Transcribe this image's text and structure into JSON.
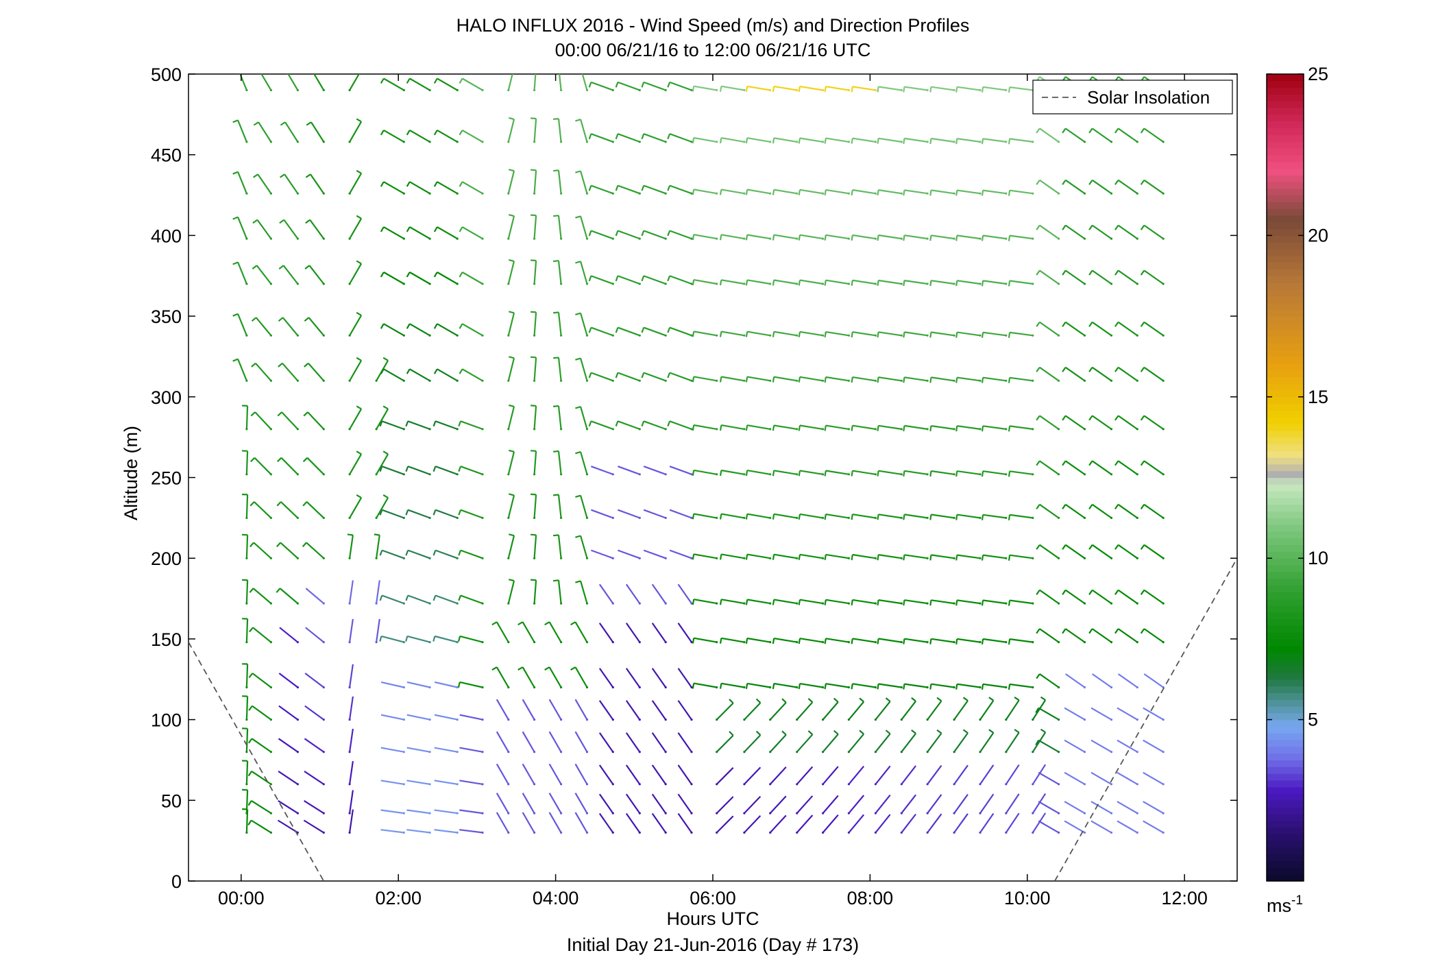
{
  "chart_data": {
    "type": "wind-barb-profile",
    "title": "HALO INFLUX 2016 - Wind Speed (m/s) and Direction Profiles",
    "subtitle": "00:00 06/21/16 to 12:00 06/21/16  UTC",
    "xlabel": "Hours UTC",
    "xlabel2": "Initial Day 21-Jun-2016 (Day # 173)",
    "ylabel": "Altitude (m)",
    "xlim_hours": [
      -0.67,
      12.67
    ],
    "ylim": [
      0,
      500
    ],
    "x_ticks": [
      {
        "v": 0,
        "label": "00:00"
      },
      {
        "v": 2,
        "label": "02:00"
      },
      {
        "v": 4,
        "label": "04:00"
      },
      {
        "v": 6,
        "label": "06:00"
      },
      {
        "v": 8,
        "label": "08:00"
      },
      {
        "v": 10,
        "label": "10:00"
      },
      {
        "v": 12,
        "label": "12:00"
      }
    ],
    "y_ticks": [
      {
        "v": 0,
        "label": "0"
      },
      {
        "v": 50,
        "label": "50"
      },
      {
        "v": 100,
        "label": "100"
      },
      {
        "v": 150,
        "label": "150"
      },
      {
        "v": 200,
        "label": "200"
      },
      {
        "v": 250,
        "label": "250"
      },
      {
        "v": 300,
        "label": "300"
      },
      {
        "v": 350,
        "label": "350"
      },
      {
        "v": 400,
        "label": "400"
      },
      {
        "v": 450,
        "label": "450"
      },
      {
        "v": 500,
        "label": "500"
      }
    ],
    "colorbar": {
      "range": [
        0,
        25
      ],
      "ticks": [
        {
          "v": 5,
          "label": "5"
        },
        {
          "v": 10,
          "label": "10"
        },
        {
          "v": 15,
          "label": "15"
        },
        {
          "v": 20,
          "label": "20"
        },
        {
          "v": 25,
          "label": "25"
        }
      ],
      "unit_base": "ms",
      "unit_exp": "-1",
      "stops": [
        {
          "v": 0,
          "c": "#0a0a2a"
        },
        {
          "v": 1.5,
          "c": "#2a1070"
        },
        {
          "v": 2.8,
          "c": "#4a18c0"
        },
        {
          "v": 3.8,
          "c": "#7070e8"
        },
        {
          "v": 4.8,
          "c": "#78a8f0"
        },
        {
          "v": 5.6,
          "c": "#4a9090"
        },
        {
          "v": 6.3,
          "c": "#207840"
        },
        {
          "v": 7.2,
          "c": "#008800"
        },
        {
          "v": 9,
          "c": "#30a030"
        },
        {
          "v": 11,
          "c": "#80c880"
        },
        {
          "v": 12.3,
          "c": "#c8e8c0"
        },
        {
          "v": 12.6,
          "c": "#b0b0b0"
        },
        {
          "v": 13.2,
          "c": "#f0e080"
        },
        {
          "v": 14.2,
          "c": "#f0d000"
        },
        {
          "v": 16,
          "c": "#e8a010"
        },
        {
          "v": 18.5,
          "c": "#b87838"
        },
        {
          "v": 20.5,
          "c": "#7a4a38"
        },
        {
          "v": 22,
          "c": "#f05080"
        },
        {
          "v": 23.5,
          "c": "#d02858"
        },
        {
          "v": 25,
          "c": "#a00010"
        }
      ]
    },
    "legend": {
      "label": "Solar Insolation",
      "position": "top-right"
    },
    "solar_insolation": [
      [
        [
          -0.67,
          148
        ],
        [
          1.05,
          0
        ]
      ],
      [
        [
          10.35,
          0
        ],
        [
          12.67,
          200
        ]
      ]
    ],
    "altitudes": [
      30,
      42,
      60,
      80,
      100,
      120,
      148,
      172,
      200,
      225,
      252,
      280,
      310,
      338,
      370,
      398,
      426,
      458,
      490
    ],
    "times": [
      0.07,
      0.38,
      0.72,
      1.05,
      1.38,
      1.72,
      2.07,
      2.4,
      2.75,
      3.07,
      3.4,
      3.73,
      4.07,
      4.4,
      4.73,
      5.07,
      5.4,
      5.73,
      6.05,
      6.4,
      6.73,
      7.07,
      7.4,
      7.73,
      8.07,
      8.4,
      8.73,
      9.07,
      9.4,
      9.73,
      10.07,
      10.4,
      10.73,
      11.07,
      11.4,
      11.73
    ],
    "wind_field_description": "Barbs at each time/altitude point; direction shown by barb line orientation (NW to N flow mostly), speed by color (0-25 m/s). Weak (2-5 m/s) winds near surface, stronger (7-13 m/s) westerly/northwesterly aloft between 05:00 and 10:00, data gap between about 01:50 and 02:00 at upper levels."
  }
}
